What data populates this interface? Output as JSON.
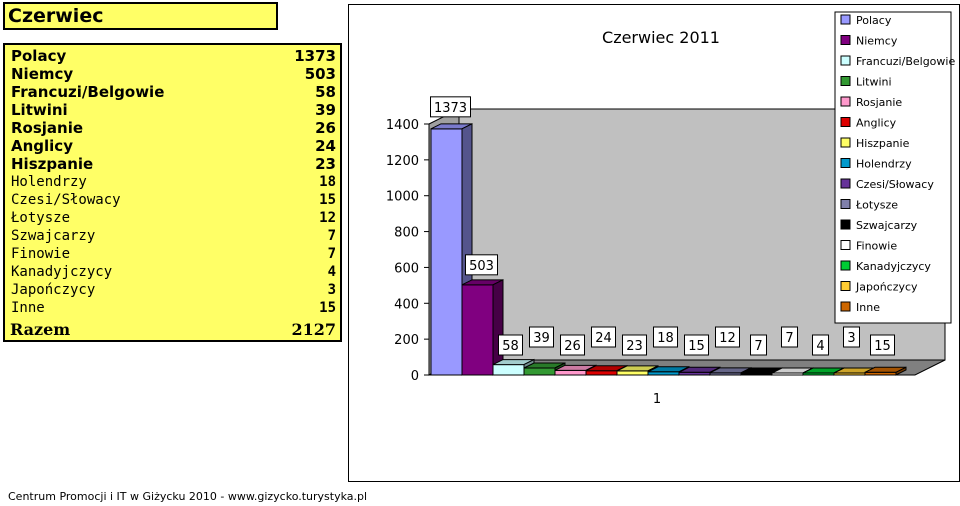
{
  "table": {
    "title": "Czerwiec",
    "rows": [
      {
        "label": "Polacy",
        "value": "1373"
      },
      {
        "label": "Niemcy",
        "value": "503"
      },
      {
        "label": "Francuzi/Belgowie",
        "value": "58"
      },
      {
        "label": "Litwini",
        "value": "39"
      },
      {
        "label": "Rosjanie",
        "value": "26"
      },
      {
        "label": "Anglicy",
        "value": "24"
      },
      {
        "label": "Hiszpanie",
        "value": "23"
      },
      {
        "label": "Holendrzy",
        "value": "18"
      },
      {
        "label": "Czesi/Słowacy",
        "value": "15"
      },
      {
        "label": "Łotysze",
        "value": "12"
      },
      {
        "label": "Szwajcarzy",
        "value": "7"
      },
      {
        "label": "Finowie",
        "value": "7"
      },
      {
        "label": "Kanadyjczycy",
        "value": "4"
      },
      {
        "label": "Japończycy",
        "value": "3"
      },
      {
        "label": "Inne",
        "value": "15"
      }
    ],
    "total_label": "Razem",
    "total_value": "2127"
  },
  "chart_data": {
    "type": "bar",
    "title": "Czerwiec 2011",
    "categories": [
      "1"
    ],
    "xlabel": "",
    "ylabel": "",
    "ylim": [
      0,
      1400
    ],
    "yticks": [
      "0",
      "200",
      "400",
      "600",
      "800",
      "1000",
      "1200",
      "1400"
    ],
    "grid": false,
    "legend_position": "top-right",
    "series": [
      {
        "name": "Polacy",
        "values": [
          1373
        ],
        "color": "#9999ff"
      },
      {
        "name": "Niemcy",
        "values": [
          503
        ],
        "color": "#800080"
      },
      {
        "name": "Francuzi/Belgowie",
        "values": [
          58
        ],
        "color": "#ccffff"
      },
      {
        "name": "Litwini",
        "values": [
          39
        ],
        "color": "#339933"
      },
      {
        "name": "Rosjanie",
        "values": [
          26
        ],
        "color": "#ff99cc"
      },
      {
        "name": "Anglicy",
        "values": [
          24
        ],
        "color": "#dd0000"
      },
      {
        "name": "Hiszpanie",
        "values": [
          23
        ],
        "color": "#ffff66"
      },
      {
        "name": "Holendrzy",
        "values": [
          18
        ],
        "color": "#0099cc"
      },
      {
        "name": "Czesi/Słowacy",
        "values": [
          15
        ],
        "color": "#663399"
      },
      {
        "name": "Łotysze",
        "values": [
          12
        ],
        "color": "#7f7faa"
      },
      {
        "name": "Szwajcarzy",
        "values": [
          7
        ],
        "color": "#000000"
      },
      {
        "name": "Finowie",
        "values": [
          7
        ],
        "color": "#ffffff"
      },
      {
        "name": "Kanadyjczycy",
        "values": [
          4
        ],
        "color": "#00cc33"
      },
      {
        "name": "Japończycy",
        "values": [
          3
        ],
        "color": "#ffcc33"
      },
      {
        "name": "Inne",
        "values": [
          15
        ],
        "color": "#cc6600"
      }
    ]
  },
  "footer": "Centrum Promocji i IT w Giżycku 2010 - www.gizycko.turystyka.pl"
}
